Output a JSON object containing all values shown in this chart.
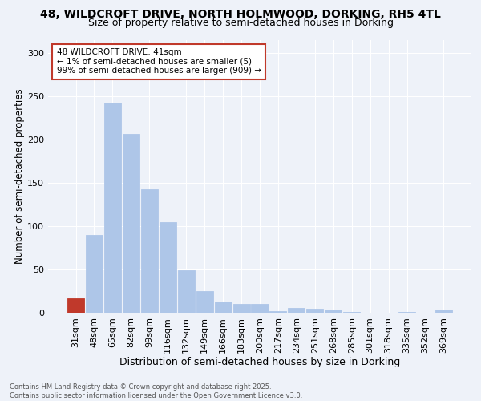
{
  "title_line1": "48, WILDCROFT DRIVE, NORTH HOLMWOOD, DORKING, RH5 4TL",
  "title_line2": "Size of property relative to semi-detached houses in Dorking",
  "xlabel": "Distribution of semi-detached houses by size in Dorking",
  "ylabel": "Number of semi-detached properties",
  "categories": [
    "31sqm",
    "48sqm",
    "65sqm",
    "82sqm",
    "99sqm",
    "116sqm",
    "132sqm",
    "149sqm",
    "166sqm",
    "183sqm",
    "200sqm",
    "217sqm",
    "234sqm",
    "251sqm",
    "268sqm",
    "285sqm",
    "301sqm",
    "318sqm",
    "335sqm",
    "352sqm",
    "369sqm"
  ],
  "values": [
    17,
    90,
    243,
    207,
    143,
    105,
    49,
    25,
    13,
    10,
    10,
    2,
    6,
    5,
    4,
    1,
    0,
    0,
    1,
    0,
    4
  ],
  "bar_color": "#aec6e8",
  "highlight_bar_index": 0,
  "highlight_bar_color": "#c0392b",
  "highlight_edge_color": "#c0392b",
  "background_color": "#eef2f9",
  "annotation_text": "48 WILDCROFT DRIVE: 41sqm\n← 1% of semi-detached houses are smaller (5)\n99% of semi-detached houses are larger (909) →",
  "annotation_box_facecolor": "#ffffff",
  "annotation_border_color": "#c0392b",
  "footer_text": "Contains HM Land Registry data © Crown copyright and database right 2025.\nContains public sector information licensed under the Open Government Licence v3.0.",
  "ylim": [
    0,
    315
  ],
  "yticks": [
    0,
    50,
    100,
    150,
    200,
    250,
    300
  ],
  "grid_color": "#ffffff",
  "title_fontsize": 10,
  "subtitle_fontsize": 9,
  "xlabel_fontsize": 9,
  "ylabel_fontsize": 8.5,
  "tick_fontsize": 8,
  "footer_fontsize": 6,
  "annot_fontsize": 7.5
}
